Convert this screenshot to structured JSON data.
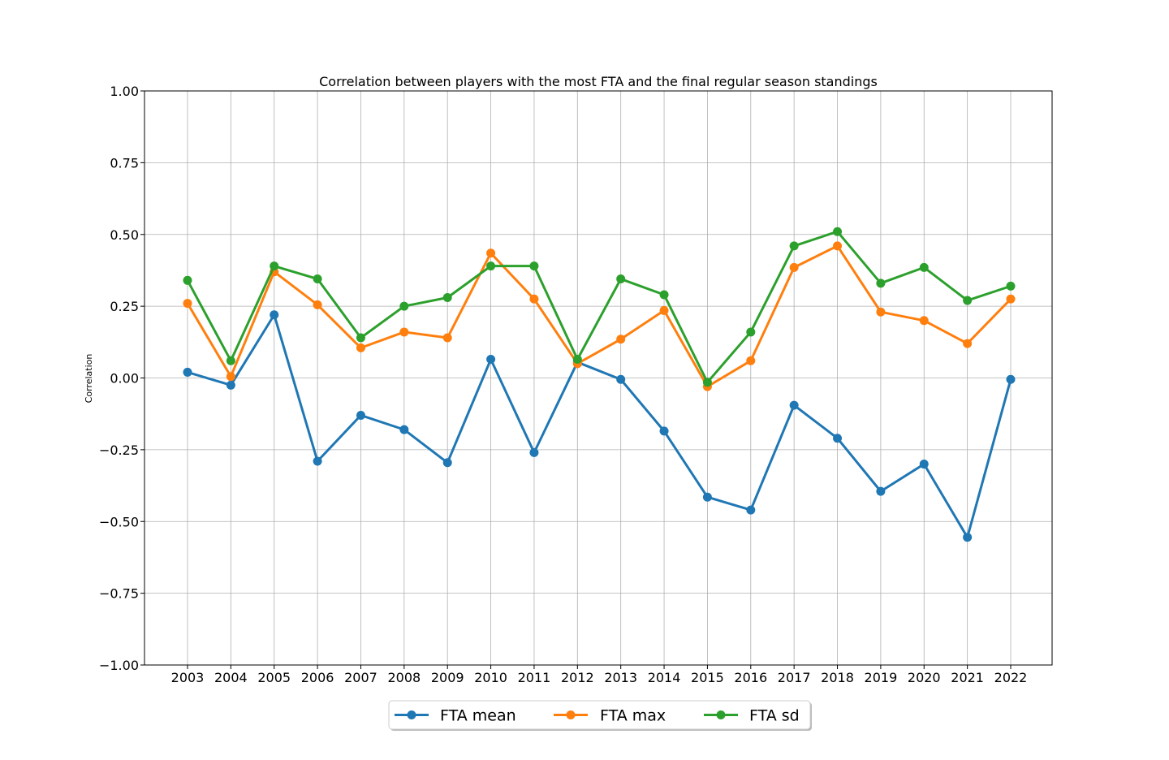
{
  "chart_data": {
    "type": "line",
    "title": "Correlation between players with the most FTA and the final regular season standings",
    "xlabel": "",
    "ylabel": "Correlation",
    "categories": [
      "2003",
      "2004",
      "2005",
      "2006",
      "2007",
      "2008",
      "2009",
      "2010",
      "2011",
      "2012",
      "2013",
      "2014",
      "2015",
      "2016",
      "2017",
      "2018",
      "2019",
      "2020",
      "2021",
      "2022"
    ],
    "ylim": [
      -1.0,
      1.0
    ],
    "yticks": [
      "1.00",
      "0.75",
      "0.50",
      "0.25",
      "0.00",
      "−0.25",
      "−0.50",
      "−0.75",
      "−1.00"
    ],
    "ytick_values": [
      1.0,
      0.75,
      0.5,
      0.25,
      0.0,
      -0.25,
      -0.5,
      -0.75,
      -1.0
    ],
    "grid": true,
    "legend_position": "bottom-center",
    "series": [
      {
        "name": "FTA mean",
        "color": "#1f77b4",
        "values": [
          0.02,
          -0.025,
          0.22,
          -0.29,
          -0.13,
          -0.18,
          -0.295,
          0.065,
          -0.26,
          0.055,
          -0.005,
          -0.185,
          -0.415,
          -0.46,
          -0.095,
          -0.21,
          -0.395,
          -0.3,
          -0.555,
          -0.005
        ]
      },
      {
        "name": "FTA max",
        "color": "#ff7f0e",
        "values": [
          0.26,
          0.005,
          0.37,
          0.255,
          0.105,
          0.16,
          0.14,
          0.435,
          0.275,
          0.05,
          0.135,
          0.235,
          -0.03,
          0.06,
          0.385,
          0.46,
          0.23,
          0.2,
          0.12,
          0.275
        ]
      },
      {
        "name": "FTA sd",
        "color": "#2ca02c",
        "values": [
          0.34,
          0.06,
          0.39,
          0.345,
          0.14,
          0.25,
          0.28,
          0.39,
          0.39,
          0.065,
          0.345,
          0.29,
          -0.015,
          0.16,
          0.46,
          0.51,
          0.33,
          0.385,
          0.27,
          0.32
        ]
      }
    ]
  }
}
